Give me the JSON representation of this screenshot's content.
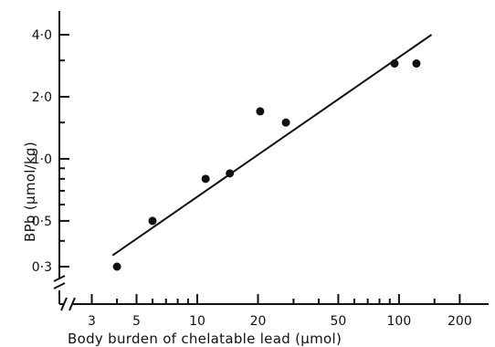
{
  "chart_data": {
    "type": "scatter",
    "xlabel": "Body burden of chelatable lead (µmol)",
    "ylabel": "BPb (µmol/kg)",
    "x_scale": "log",
    "y_scale": "log",
    "xlim": [
      3,
      200
    ],
    "ylim": [
      0.3,
      4.0
    ],
    "x_ticks": [
      {
        "value": 3,
        "label": "3"
      },
      {
        "value": 5,
        "label": "5"
      },
      {
        "value": 10,
        "label": "10"
      },
      {
        "value": 20,
        "label": "20"
      },
      {
        "value": 50,
        "label": "50"
      },
      {
        "value": 100,
        "label": "100"
      },
      {
        "value": 200,
        "label": "200"
      }
    ],
    "y_ticks": [
      {
        "value": 0.3,
        "label": "0·3"
      },
      {
        "value": 0.5,
        "label": "0·5"
      },
      {
        "value": 1.0,
        "label": "1·0"
      },
      {
        "value": 2.0,
        "label": "2·0"
      },
      {
        "value": 4.0,
        "label": "4·0"
      }
    ],
    "points": [
      {
        "x": 4,
        "y": 0.3
      },
      {
        "x": 6,
        "y": 0.5
      },
      {
        "x": 11,
        "y": 0.8
      },
      {
        "x": 14.5,
        "y": 0.85
      },
      {
        "x": 20.5,
        "y": 1.7
      },
      {
        "x": 27.5,
        "y": 1.5
      },
      {
        "x": 95,
        "y": 2.9
      },
      {
        "x": 122,
        "y": 2.9
      }
    ],
    "fit_line": {
      "x": [
        3.8,
        145
      ],
      "y": [
        0.34,
        4.0
      ]
    },
    "grid": false,
    "legend": "none"
  }
}
